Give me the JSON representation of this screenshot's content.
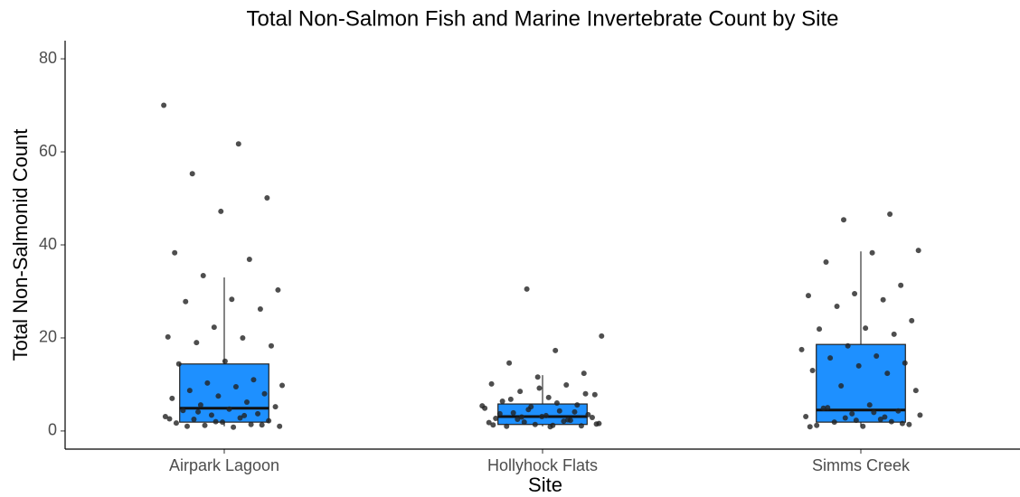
{
  "chart_data": {
    "type": "box",
    "title": "Total Non-Salmon Fish and Marine Invertebrate Count by Site",
    "x_label": "Site",
    "y_label": "Total Non-Salmonid Count",
    "categories": [
      "Airpark Lagoon",
      "Hollyhock Flats",
      "Simms Creek"
    ],
    "boxes": [
      {
        "min": 1,
        "q1": 1.9,
        "median": 4.9,
        "q3": 14.4,
        "max": 33
      },
      {
        "min": 1,
        "q1": 1.4,
        "median": 3.1,
        "q3": 5.8,
        "max": 12
      },
      {
        "min": 1,
        "q1": 1.9,
        "median": 4.5,
        "q3": 18.6,
        "max": 38.6
      }
    ],
    "points": [
      [
        70,
        61.7,
        55.3,
        50.1,
        47.2,
        38.3,
        36.9,
        33.4,
        30.3,
        28.3,
        27.8,
        26.2,
        22.3,
        20.2,
        20,
        19,
        18.3,
        15,
        14.4,
        11,
        10.3,
        9.8,
        9.5,
        8.7,
        8,
        7.5,
        7,
        6.2,
        5.6,
        5.2,
        4.7,
        4.4,
        3.7,
        3.4,
        3.1,
        2.8,
        2.5,
        2.2,
        1.9,
        1.7,
        1.4,
        1.2,
        1,
        0.8,
        1,
        1.3,
        2,
        2.6,
        3.3,
        4.1
      ],
      [
        30.5,
        20.4,
        17.3,
        14.6,
        12.4,
        11.6,
        10.1,
        9.9,
        8.5,
        7.8,
        7.2,
        6.4,
        5.6,
        5.2,
        4.9,
        4.3,
        3.9,
        3.5,
        3.1,
        2.7,
        2.3,
        1.9,
        1.6,
        1.2,
        1,
        1.1,
        1.4,
        1.8,
        2.1,
        2.5,
        2.9,
        3.3,
        3.7,
        4.1,
        4.6,
        5.4,
        6,
        6.8,
        8,
        9.2,
        1.3,
        2.4,
        3,
        1.5,
        0.9
      ],
      [
        46.6,
        45.4,
        38.8,
        38.3,
        36.3,
        31.3,
        29.5,
        29.1,
        28.2,
        26.8,
        23.7,
        22.1,
        21.9,
        20.8,
        18.3,
        17.5,
        16.1,
        15.7,
        14.6,
        14,
        13,
        12.4,
        9.7,
        8.7,
        5.6,
        4.9,
        4.3,
        3.7,
        3.1,
        2.5,
        1.9,
        1.4,
        1,
        1.2,
        2,
        2.8,
        3.4,
        4,
        5,
        1.6,
        2.3,
        0.9,
        3
      ]
    ],
    "box_color": "#1e90ff",
    "point_color": "#222222",
    "ylim": [
      -3.9,
      83.9
    ],
    "yticks": [
      0,
      20,
      40,
      60,
      80
    ]
  }
}
